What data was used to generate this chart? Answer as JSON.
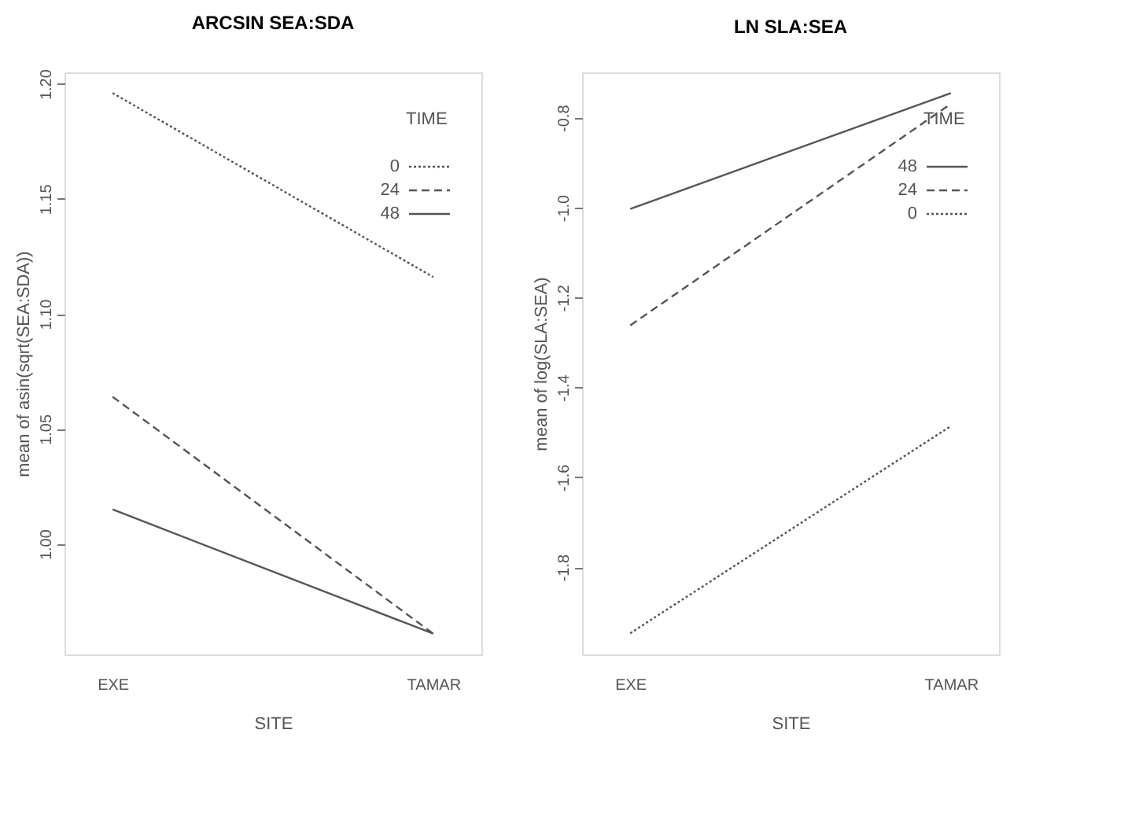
{
  "chart_data": [
    {
      "type": "line",
      "title": "ARCSIN SEA:SDA",
      "xlabel": "SITE",
      "ylabel": "mean of  asin(sqrt(SEA:SDA))",
      "legend_title": "TIME",
      "legend": "top right",
      "grid": false,
      "categories": [
        "EXE",
        "TAMAR"
      ],
      "ylim": [
        0.952,
        1.205
      ],
      "yticks": [
        {
          "value": 1.0,
          "label": "1.00"
        },
        1.05,
        {
          "value": 1.1,
          "label": "1.10"
        },
        1.15,
        {
          "value": 1.2,
          "label": "1.20"
        }
      ],
      "series": [
        {
          "name": "0",
          "color": "#555555",
          "line_style": "dotted",
          "values": [
            1.196,
            1.116
          ]
        },
        {
          "name": "24",
          "color": "#555555",
          "line_style": "dashed",
          "values": [
            1.064,
            0.961
          ]
        },
        {
          "name": "48",
          "color": "#555555",
          "line_style": "solid",
          "values": [
            1.015,
            0.961
          ]
        }
      ]
    },
    {
      "type": "line",
      "title": "LN SLA:SEA",
      "xlabel": "SITE",
      "ylabel": "mean of  log(SLA:SEA)",
      "legend_title": "TIME",
      "legend": "top right",
      "grid": false,
      "categories": [
        "EXE",
        "TAMAR"
      ],
      "ylim": [
        -1.994,
        -0.699
      ],
      "yticks": [
        -1.8,
        -1.6,
        -1.4,
        -1.2,
        {
          "value": -1.0,
          "label": "-1.0"
        },
        -0.8
      ],
      "series": [
        {
          "name": "48",
          "color": "#555555",
          "line_style": "solid",
          "values": [
            -1.003,
            -0.745
          ]
        },
        {
          "name": "24",
          "color": "#555555",
          "line_style": "dashed",
          "values": [
            -1.262,
            -0.769
          ]
        },
        {
          "name": "0",
          "color": "#555555",
          "line_style": "dotted",
          "values": [
            -1.947,
            -1.486
          ]
        }
      ]
    }
  ]
}
